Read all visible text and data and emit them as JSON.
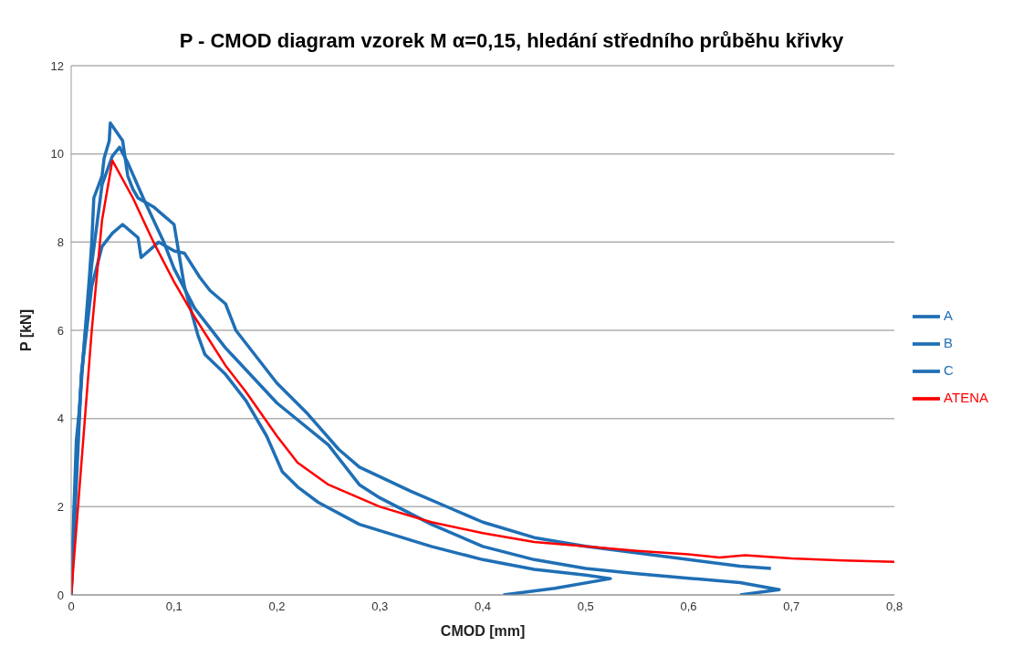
{
  "chart_data": {
    "type": "line",
    "title": "P - CMOD diagram vzorek M α=0,15, hledání středního průběhu křivky",
    "xlabel": "CMOD [mm]",
    "ylabel": "P [kN]",
    "xlim": [
      0,
      0.8
    ],
    "xticks": [
      0,
      {
        "value": 0.1,
        "label": "0,1"
      },
      {
        "value": 0.2,
        "label": "0,2"
      },
      {
        "value": 0.3,
        "label": "0,3"
      },
      {
        "value": 0.4,
        "label": "0,4"
      },
      {
        "value": 0.5,
        "label": "0,5"
      },
      {
        "value": 0.6,
        "label": "0,6"
      },
      {
        "value": 0.7,
        "label": "0,7"
      },
      {
        "value": 0.8,
        "label": "0,8"
      }
    ],
    "ylim": [
      0,
      12
    ],
    "yticks": [
      0,
      2,
      4,
      6,
      8,
      10,
      12
    ],
    "grid": "y",
    "legend": "right",
    "marker": "none",
    "line_style": "solid",
    "series": [
      {
        "name": "A",
        "color": "#1f6fb5",
        "x": [
          0,
          0.002,
          0.005,
          0.008,
          0.012,
          0.018,
          0.02,
          0.022,
          0.03,
          0.032,
          0.037,
          0.038,
          0.05,
          0.055,
          0.06,
          0.065,
          0.08,
          0.09,
          0.1,
          0.11,
          0.123,
          0.13,
          0.15,
          0.17,
          0.19,
          0.205,
          0.22,
          0.24,
          0.28,
          0.35,
          0.4,
          0.45,
          0.5,
          0.524,
          0.47,
          0.42
        ],
        "values": [
          0,
          1.5,
          3.5,
          4.2,
          5.5,
          7.3,
          8,
          9,
          9.5,
          9.9,
          10.3,
          10.7,
          10.3,
          9.5,
          9.2,
          9,
          8.8,
          8.6,
          8.4,
          7,
          5.9,
          5.45,
          5,
          4.4,
          3.6,
          2.8,
          2.45,
          2.1,
          1.6,
          1.1,
          0.8,
          0.58,
          0.45,
          0.37,
          0.15,
          0
        ]
      },
      {
        "name": "B",
        "color": "#1f6fb5",
        "x": [
          0,
          0.01,
          0.02,
          0.03,
          0.04,
          0.047,
          0.055,
          0.07,
          0.09,
          0.1,
          0.12,
          0.15,
          0.2,
          0.25,
          0.28,
          0.3,
          0.35,
          0.4,
          0.45,
          0.5,
          0.55,
          0.6,
          0.65,
          0.688,
          0.65
        ],
        "values": [
          0,
          5,
          7.5,
          9.3,
          9.95,
          10.15,
          9.8,
          9,
          8,
          7.4,
          6.5,
          5.6,
          4.35,
          3.4,
          2.5,
          2.2,
          1.6,
          1.1,
          0.8,
          0.6,
          0.48,
          0.38,
          0.28,
          0.12,
          0
        ]
      },
      {
        "name": "C",
        "color": "#1f6fb5",
        "x": [
          0,
          0.005,
          0.01,
          0.02,
          0.03,
          0.04,
          0.05,
          0.065,
          0.068,
          0.085,
          0.1,
          0.11,
          0.125,
          0.135,
          0.15,
          0.16,
          0.2,
          0.23,
          0.26,
          0.28,
          0.33,
          0.37,
          0.4,
          0.45,
          0.5,
          0.55,
          0.6,
          0.65,
          0.68
        ],
        "values": [
          0,
          3,
          5,
          7,
          7.9,
          8.2,
          8.4,
          8.1,
          7.65,
          8,
          7.8,
          7.75,
          7.2,
          6.9,
          6.6,
          6,
          4.8,
          4.1,
          3.3,
          2.9,
          2.35,
          1.95,
          1.65,
          1.3,
          1.1,
          0.95,
          0.8,
          0.65,
          0.6
        ]
      },
      {
        "name": "ATENA",
        "color": "#ff0000",
        "x": [
          0,
          0.01,
          0.02,
          0.03,
          0.04,
          0.06,
          0.08,
          0.1,
          0.12,
          0.15,
          0.17,
          0.2,
          0.22,
          0.25,
          0.3,
          0.35,
          0.4,
          0.45,
          0.5,
          0.55,
          0.6,
          0.63,
          0.655,
          0.7,
          0.75,
          0.8
        ],
        "values": [
          0,
          3,
          6,
          8.5,
          9.85,
          9,
          8,
          7.1,
          6.3,
          5.2,
          4.6,
          3.6,
          3,
          2.5,
          2,
          1.65,
          1.4,
          1.2,
          1.1,
          1,
          0.92,
          0.85,
          0.9,
          0.83,
          0.78,
          0.75
        ]
      }
    ]
  }
}
